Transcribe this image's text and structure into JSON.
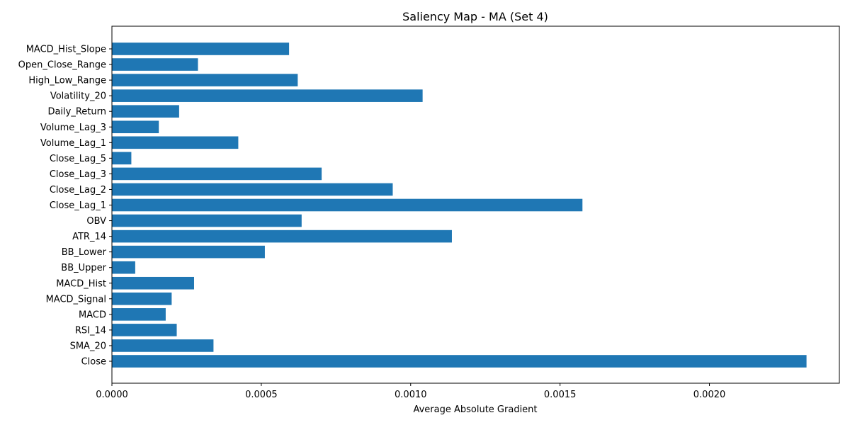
{
  "chart_data": {
    "type": "bar",
    "orientation": "horizontal",
    "title": "Saliency Map - MA (Set 4)",
    "xlabel": "Average Absolute Gradient",
    "ylabel": "",
    "xlim": [
      0,
      0.002435
    ],
    "xticks": [
      0.0,
      0.0005,
      0.001,
      0.0015,
      0.002
    ],
    "xtick_labels": [
      "0.0000",
      "0.0005",
      "0.0010",
      "0.0015",
      "0.0020"
    ],
    "grid": false,
    "bar_color": "#1f77b4",
    "categories": [
      "Close",
      "SMA_20",
      "RSI_14",
      "MACD",
      "MACD_Signal",
      "MACD_Hist",
      "BB_Upper",
      "BB_Lower",
      "ATR_14",
      "OBV",
      "Close_Lag_1",
      "Close_Lag_2",
      "Close_Lag_3",
      "Close_Lag_5",
      "Volume_Lag_1",
      "Volume_Lag_3",
      "Daily_Return",
      "Volatility_20",
      "High_Low_Range",
      "Open_Close_Range",
      "MACD_Hist_Slope"
    ],
    "values": [
      0.002325,
      0.00034,
      0.000217,
      0.00018,
      0.0002,
      0.000275,
      7.8e-05,
      0.000512,
      0.001138,
      0.000635,
      0.001575,
      0.00094,
      0.000702,
      6.5e-05,
      0.000423,
      0.000157,
      0.000225,
      0.00104,
      0.000622,
      0.000288,
      0.000593
    ]
  }
}
